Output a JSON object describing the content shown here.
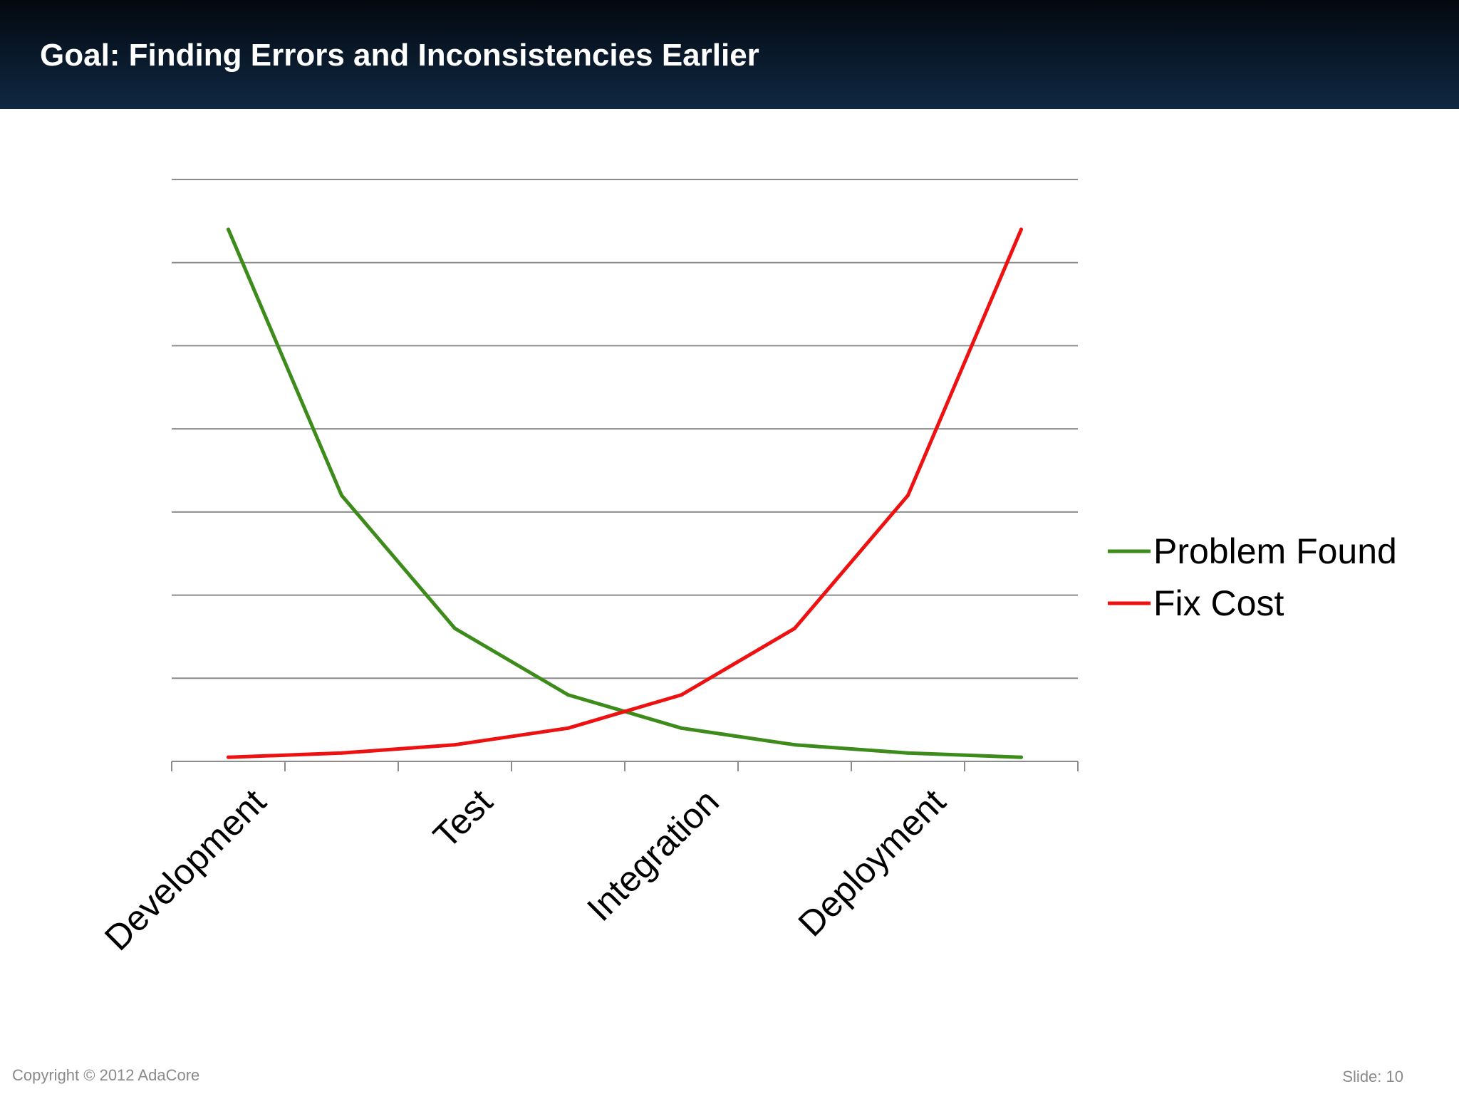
{
  "slide": {
    "title": "Goal: Finding Errors and Inconsistencies Earlier",
    "copyright": "Copyright © 2012 AdaCore",
    "slide_number": "Slide: 10"
  },
  "chart_data": {
    "type": "line",
    "title": "",
    "xlabel": "",
    "ylabel": "",
    "categories": [
      "Development",
      "",
      "Test",
      "",
      "Integration",
      "",
      "Deployment",
      ""
    ],
    "series": [
      {
        "name": "Problem Found",
        "color": "#3d8b1a",
        "values": [
          64,
          32,
          16,
          8,
          4,
          2,
          1,
          0.5
        ]
      },
      {
        "name": "Fix Cost",
        "color": "#ee1111",
        "values": [
          0.5,
          1,
          2,
          4,
          8,
          16,
          32,
          64
        ]
      }
    ],
    "ylim": [
      0,
      70
    ],
    "y_gridlines": 7,
    "grid": true,
    "legend_position": "right"
  }
}
